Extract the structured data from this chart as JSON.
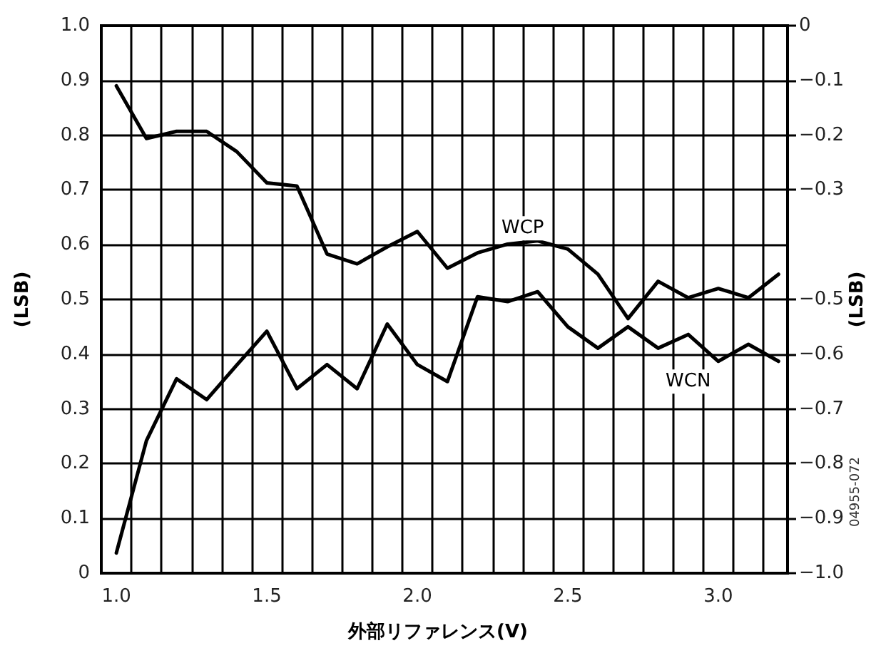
{
  "chart_data": {
    "type": "line",
    "xlabel": "外部リファレンス(V)",
    "ylabel": "(LSB)",
    "y2label": "(LSB)",
    "x": [
      1.0,
      1.1,
      1.2,
      1.3,
      1.4,
      1.5,
      1.6,
      1.7,
      1.8,
      1.9,
      2.0,
      2.1,
      2.2,
      2.3,
      2.4,
      2.5,
      2.6,
      2.7,
      2.8,
      2.9,
      3.0,
      3.1,
      3.2
    ],
    "series": [
      {
        "color": "#000000",
        "values": [
          0.89,
          0.794,
          0.807,
          0.807,
          0.77,
          0.713,
          0.707,
          0.583,
          0.565,
          0.596,
          0.624,
          0.557,
          0.585,
          0.601,
          0.607,
          0.592,
          0.546,
          0.465,
          0.533,
          0.503,
          0.52,
          0.503,
          0.546
        ]
      },
      {
        "color": "#000000",
        "axis": "y2",
        "values": [
          -0.963,
          -0.758,
          -0.645,
          -0.683,
          -0.62,
          -0.558,
          -0.663,
          -0.619,
          -0.663,
          -0.545,
          -0.619,
          -0.65,
          -0.495,
          -0.504,
          -0.486,
          -0.55,
          -0.589,
          -0.55,
          -0.589,
          -0.564,
          -0.613,
          -0.582,
          -0.613
        ]
      }
    ],
    "xlim": [
      0.95,
      3.23
    ],
    "xticks": [
      {
        "value": 1.0,
        "label": "1.0"
      },
      {
        "value": 1.05,
        "label": null
      },
      {
        "value": 1.15,
        "label": null
      },
      {
        "value": 1.25,
        "label": null
      },
      {
        "value": 1.35,
        "label": null
      },
      {
        "value": 1.45,
        "label": null
      },
      {
        "value": 1.5,
        "label": "1.5"
      },
      {
        "value": 1.55,
        "label": null
      },
      {
        "value": 1.65,
        "label": null
      },
      {
        "value": 1.75,
        "label": null
      },
      {
        "value": 1.85,
        "label": null
      },
      {
        "value": 1.95,
        "label": null
      },
      {
        "value": 2.0,
        "label": "2.0"
      },
      {
        "value": 2.05,
        "label": null
      },
      {
        "value": 2.15,
        "label": null
      },
      {
        "value": 2.25,
        "label": null
      },
      {
        "value": 2.35,
        "label": null
      },
      {
        "value": 2.45,
        "label": null
      },
      {
        "value": 2.5,
        "label": "2.5"
      },
      {
        "value": 2.55,
        "label": null
      },
      {
        "value": 2.65,
        "label": null
      },
      {
        "value": 2.75,
        "label": null
      },
      {
        "value": 2.85,
        "label": null
      },
      {
        "value": 2.95,
        "label": null
      },
      {
        "value": 3.0,
        "label": "3.0"
      },
      {
        "value": 3.05,
        "label": null
      },
      {
        "value": 3.15,
        "label": null
      }
    ],
    "ylim": [
      0,
      1
    ],
    "yticks": [
      0,
      0.1,
      0.2,
      0.3,
      0.4,
      0.5,
      0.6,
      0.7,
      0.8,
      0.9,
      {
        "value": 1,
        "label": "1.0"
      }
    ],
    "y2lim": [
      -1,
      0
    ],
    "y2ticks": [
      {
        "value": -1,
        "label": "−1.0"
      },
      {
        "value": -0.9,
        "label": "−0.9"
      },
      {
        "value": -0.8,
        "label": "−0.8"
      },
      {
        "value": -0.7,
        "label": "−0.7"
      },
      {
        "value": -0.6,
        "label": "−0.6"
      },
      {
        "value": -0.5,
        "label": "−0.5"
      },
      {
        "value": -0.3,
        "label": "−0.3"
      },
      {
        "value": -0.2,
        "label": "−0.2"
      },
      {
        "value": -0.1,
        "label": "−0.1"
      },
      0
    ],
    "grid": true,
    "marker": "none",
    "line_style": "solid",
    "annotations": [
      {
        "text": "WCP",
        "x": 2.35,
        "y": 0.63
      },
      {
        "text": "WCN",
        "x": 2.9,
        "y": 0.35
      },
      "04955-072"
    ]
  }
}
